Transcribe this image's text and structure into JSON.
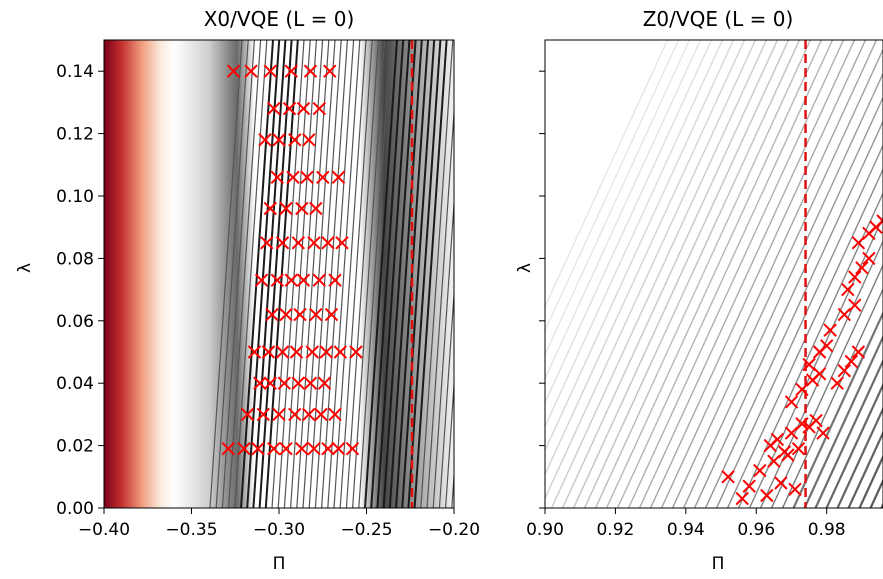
{
  "chart_data": [
    {
      "type": "scatter",
      "title": "X0/VQE (L = 0)",
      "xlabel": "Π",
      "ylabel": "λ",
      "xlim": [
        -0.4,
        -0.2
      ],
      "ylim": [
        0.0,
        0.15
      ],
      "xticks": [
        "−0.40",
        "−0.35",
        "−0.30",
        "−0.25",
        "−0.20"
      ],
      "xtick_values": [
        -0.4,
        -0.35,
        -0.3,
        -0.25,
        -0.2
      ],
      "yticks": [
        "0.00",
        "0.02",
        "0.04",
        "0.06",
        "0.08",
        "0.10",
        "0.12",
        "0.14"
      ],
      "ytick_values": [
        0.0,
        0.02,
        0.04,
        0.06,
        0.08,
        0.1,
        0.12,
        0.14
      ],
      "dashed_line_x": -0.224,
      "background": "contour field, red at low Π fading to white then grey/black contour lines",
      "marker": "x",
      "marker_color": "#ff0000",
      "series": [
        {
          "x": [
            -0.329,
            -0.32,
            -0.312,
            -0.303,
            -0.296,
            -0.287,
            -0.28,
            -0.272,
            -0.266,
            -0.258,
            -0.318,
            -0.309,
            -0.3,
            -0.291,
            -0.283,
            -0.276,
            -0.268,
            -0.311,
            -0.305,
            -0.297,
            -0.289,
            -0.282,
            -0.274,
            -0.314,
            -0.306,
            -0.298,
            -0.29,
            -0.281,
            -0.273,
            -0.265,
            -0.256,
            -0.304,
            -0.296,
            -0.288,
            -0.279,
            -0.27,
            -0.31,
            -0.301,
            -0.293,
            -0.286,
            -0.277,
            -0.268,
            -0.307,
            -0.298,
            -0.289,
            -0.28,
            -0.272,
            -0.264,
            -0.305,
            -0.296,
            -0.287,
            -0.279,
            -0.301,
            -0.292,
            -0.284,
            -0.275,
            -0.266,
            -0.308,
            -0.3,
            -0.291,
            -0.283,
            -0.303,
            -0.294,
            -0.286,
            -0.277,
            -0.326,
            -0.316,
            -0.305,
            -0.293,
            -0.282,
            -0.271
          ],
          "y": [
            0.019,
            0.019,
            0.019,
            0.019,
            0.019,
            0.019,
            0.019,
            0.019,
            0.019,
            0.019,
            0.03,
            0.03,
            0.03,
            0.03,
            0.03,
            0.03,
            0.03,
            0.04,
            0.04,
            0.04,
            0.04,
            0.04,
            0.04,
            0.05,
            0.05,
            0.05,
            0.05,
            0.05,
            0.05,
            0.05,
            0.05,
            0.062,
            0.062,
            0.062,
            0.062,
            0.062,
            0.073,
            0.073,
            0.073,
            0.073,
            0.073,
            0.073,
            0.085,
            0.085,
            0.085,
            0.085,
            0.085,
            0.085,
            0.096,
            0.096,
            0.096,
            0.096,
            0.106,
            0.106,
            0.106,
            0.106,
            0.106,
            0.118,
            0.118,
            0.118,
            0.118,
            0.128,
            0.128,
            0.128,
            0.128,
            0.14,
            0.14,
            0.14,
            0.14,
            0.14,
            0.14
          ]
        }
      ]
    },
    {
      "type": "scatter",
      "title": "Z0/VQE (L = 0)",
      "xlabel": "Π",
      "ylabel": "λ",
      "xlim": [
        0.9,
        0.996
      ],
      "ylim": [
        0.0,
        0.15
      ],
      "xticks": [
        "0.90",
        "0.92",
        "0.94",
        "0.96",
        "0.98"
      ],
      "xtick_values": [
        0.9,
        0.92,
        0.94,
        0.96,
        0.98
      ],
      "yticks": [],
      "dashed_line_x": 0.974,
      "background": "diagonal contour lines, light grey upper-left to black lower-right",
      "marker": "x",
      "marker_color": "#ff0000",
      "series": [
        {
          "x": [
            0.952,
            0.956,
            0.958,
            0.961,
            0.963,
            0.965,
            0.967,
            0.969,
            0.971,
            0.964,
            0.966,
            0.968,
            0.97,
            0.972,
            0.973,
            0.975,
            0.977,
            0.979,
            0.97,
            0.973,
            0.976,
            0.978,
            0.975,
            0.978,
            0.98,
            0.983,
            0.985,
            0.987,
            0.989,
            0.981,
            0.985,
            0.988,
            0.986,
            0.988,
            0.99,
            0.992,
            0.989,
            0.992,
            0.994,
            0.996
          ],
          "y": [
            0.01,
            0.003,
            0.007,
            0.012,
            0.004,
            0.015,
            0.008,
            0.017,
            0.006,
            0.02,
            0.022,
            0.018,
            0.024,
            0.019,
            0.027,
            0.026,
            0.028,
            0.024,
            0.034,
            0.038,
            0.041,
            0.043,
            0.046,
            0.05,
            0.052,
            0.04,
            0.044,
            0.047,
            0.05,
            0.057,
            0.062,
            0.065,
            0.07,
            0.074,
            0.077,
            0.08,
            0.085,
            0.088,
            0.09,
            0.092
          ]
        }
      ]
    }
  ]
}
